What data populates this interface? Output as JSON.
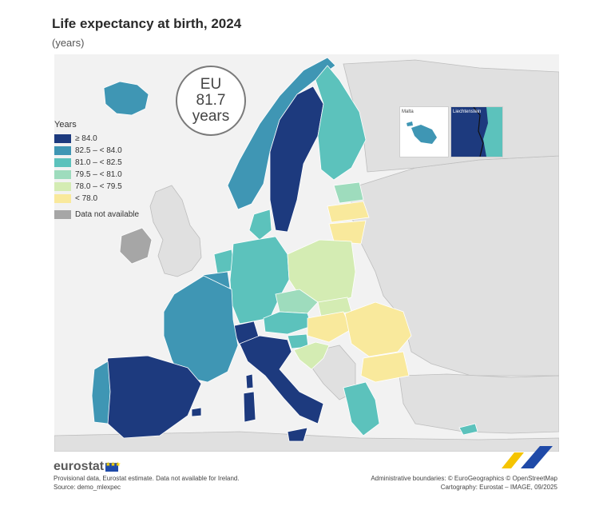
{
  "title": "Life expectancy at birth, 2024",
  "subtitle": "(years)",
  "eu_badge": {
    "line1": "EU",
    "line2": "81.7",
    "line3": "years"
  },
  "legend": {
    "title": "Years",
    "classes": [
      {
        "label": "≥ 84.0",
        "color": "#1d3a7e"
      },
      {
        "label": "82.5 – < 84.0",
        "color": "#3f96b4"
      },
      {
        "label": "81.0 – < 82.5",
        "color": "#5cc2bc"
      },
      {
        "label": "79.5 – < 81.0",
        "color": "#9edcbd"
      },
      {
        "label": "78.0 – < 79.5",
        "color": "#d4ecb3"
      },
      {
        "label": "< 78.0",
        "color": "#f9e99c"
      }
    ],
    "na": {
      "label": "Data not available",
      "color": "#a6a6a6"
    }
  },
  "map_data": {
    "regions": [
      {
        "name": "Iceland",
        "class": "82.5 – < 84.0"
      },
      {
        "name": "Norway",
        "class": "82.5 – < 84.0"
      },
      {
        "name": "Sweden",
        "class": "≥ 84.0"
      },
      {
        "name": "Finland",
        "class": "81.0 – < 82.5"
      },
      {
        "name": "Denmark",
        "class": "81.0 – < 82.5"
      },
      {
        "name": "Estonia",
        "class": "79.5 – < 81.0"
      },
      {
        "name": "Latvia",
        "class": "< 78.0"
      },
      {
        "name": "Lithuania",
        "class": "< 78.0"
      },
      {
        "name": "Poland",
        "class": "78.0 – < 79.5"
      },
      {
        "name": "Germany",
        "class": "81.0 – < 82.5"
      },
      {
        "name": "Netherlands",
        "class": "81.0 – < 82.5"
      },
      {
        "name": "Belgium",
        "class": "82.5 – < 84.0"
      },
      {
        "name": "Luxembourg",
        "class": "82.5 – < 84.0"
      },
      {
        "name": "France",
        "class": "82.5 – < 84.0"
      },
      {
        "name": "Spain",
        "class": "≥ 84.0"
      },
      {
        "name": "Portugal",
        "class": "82.5 – < 84.0"
      },
      {
        "name": "Italy",
        "class": "≥ 84.0"
      },
      {
        "name": "Switzerland",
        "class": "≥ 84.0"
      },
      {
        "name": "Austria",
        "class": "81.0 – < 82.5"
      },
      {
        "name": "Czechia",
        "class": "79.5 – < 81.0"
      },
      {
        "name": "Slovakia",
        "class": "78.0 – < 79.5"
      },
      {
        "name": "Slovenia",
        "class": "81.0 – < 82.5"
      },
      {
        "name": "Croatia",
        "class": "78.0 – < 79.5"
      },
      {
        "name": "Hungary",
        "class": "< 78.0"
      },
      {
        "name": "Romania",
        "class": "< 78.0"
      },
      {
        "name": "Bulgaria",
        "class": "< 78.0"
      },
      {
        "name": "Greece",
        "class": "81.0 – < 82.5"
      },
      {
        "name": "Cyprus",
        "class": "81.0 – < 82.5"
      },
      {
        "name": "Malta",
        "class": "82.5 – < 84.0"
      },
      {
        "name": "Liechtenstein",
        "class": "≥ 84.0"
      },
      {
        "name": "Ireland",
        "class": "Data not available"
      }
    ]
  },
  "insets": {
    "malta_label": "Malta",
    "liechtenstein_label": "Liechtenstein"
  },
  "footer": {
    "logo_text": "eurostat",
    "notes_line1": "Provisional data, Eurostat estimate. Data not available for Ireland.",
    "notes_line2": "Source: demo_mlexpec",
    "credits_line1": "Administrative boundaries: © EuroGeographics © OpenStreetMap",
    "credits_line2": "Cartography: Eurostat – IMAGE, 09/2025"
  },
  "colors": {
    "background_land": "#ffffff",
    "non_eu_land": "#e0e0e0",
    "sea": "#f2f2f2",
    "accent_yellow": "#f5c400",
    "accent_blue": "#1f4aa8"
  }
}
